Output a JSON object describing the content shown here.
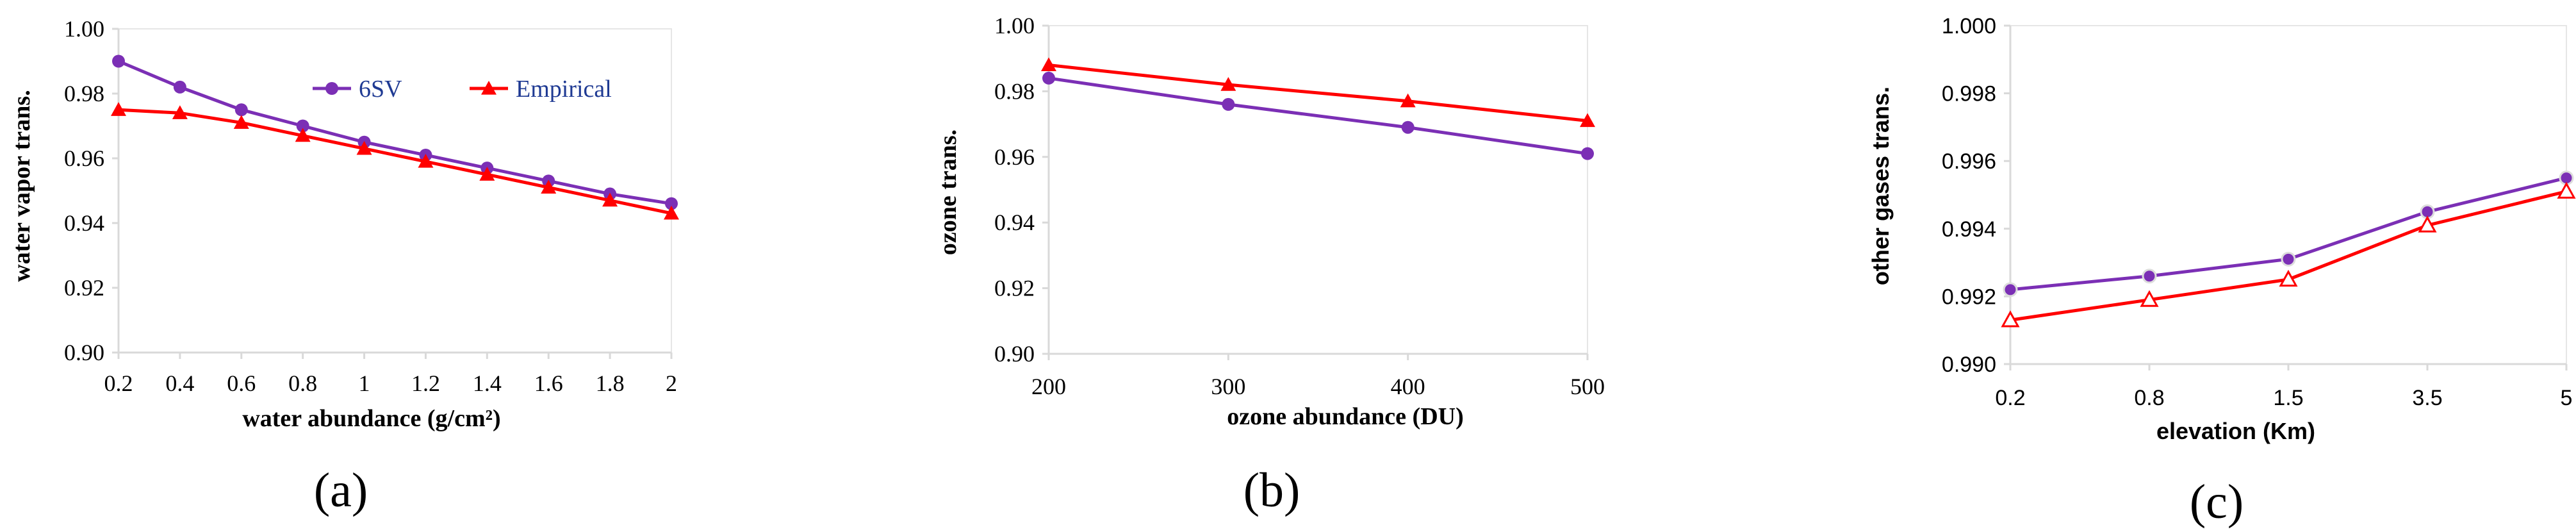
{
  "chart_data": [
    {
      "type": "line",
      "panel_label": "(a)",
      "xlabel": "water abundance (g/cm²)",
      "ylabel": "water vapor trans.",
      "categories": [
        "0.2",
        "0.4",
        "0.6",
        "0.8",
        "1",
        "1.2",
        "1.4",
        "1.6",
        "1.8",
        "2"
      ],
      "ylim": [
        0.9,
        1.0
      ],
      "yticks": [
        "0.90",
        "0.92",
        "0.94",
        "0.96",
        "0.98",
        "1.00"
      ],
      "legend": "top-right",
      "series": [
        {
          "name": "6SV",
          "color": "#7b2fb5",
          "marker": "circle",
          "values": [
            0.99,
            0.982,
            0.975,
            0.97,
            0.965,
            0.961,
            0.957,
            0.953,
            0.949,
            0.946
          ]
        },
        {
          "name": "Empirical",
          "color": "#ff0000",
          "marker": "triangle",
          "values": [
            0.975,
            0.974,
            0.971,
            0.967,
            0.963,
            0.959,
            0.955,
            0.951,
            0.947,
            0.943
          ]
        }
      ]
    },
    {
      "type": "line",
      "panel_label": "(b)",
      "xlabel": "ozone abundance (DU)",
      "ylabel": "ozone trans.",
      "categories": [
        "200",
        "300",
        "400",
        "500"
      ],
      "ylim": [
        0.9,
        1.0
      ],
      "yticks": [
        "0.90",
        "0.92",
        "0.94",
        "0.96",
        "0.98",
        "1.00"
      ],
      "series": [
        {
          "name": "6SV",
          "color": "#7b2fb5",
          "marker": "circle",
          "values": [
            0.984,
            0.976,
            0.969,
            0.961
          ]
        },
        {
          "name": "Empirical",
          "color": "#ff0000",
          "marker": "triangle",
          "values": [
            0.988,
            0.982,
            0.977,
            0.971
          ]
        }
      ]
    },
    {
      "type": "line",
      "panel_label": "(c)",
      "xlabel": "elevation (Km)",
      "ylabel": "other gases trans.",
      "categories": [
        "0.2",
        "0.8",
        "1.5",
        "3.5",
        "5"
      ],
      "ylim": [
        0.99,
        1.0
      ],
      "yticks": [
        "0.990",
        "0.992",
        "0.994",
        "0.996",
        "0.998",
        "1.000"
      ],
      "series": [
        {
          "name": "6SV",
          "color": "#7b2fb5",
          "marker": "circle",
          "values": [
            0.9922,
            0.9926,
            0.9931,
            0.9945,
            0.9955
          ]
        },
        {
          "name": "Empirical",
          "color": "#ff0000",
          "marker": "triangle",
          "values": [
            0.9913,
            0.9919,
            0.9925,
            0.9941,
            0.9951
          ]
        }
      ]
    }
  ]
}
